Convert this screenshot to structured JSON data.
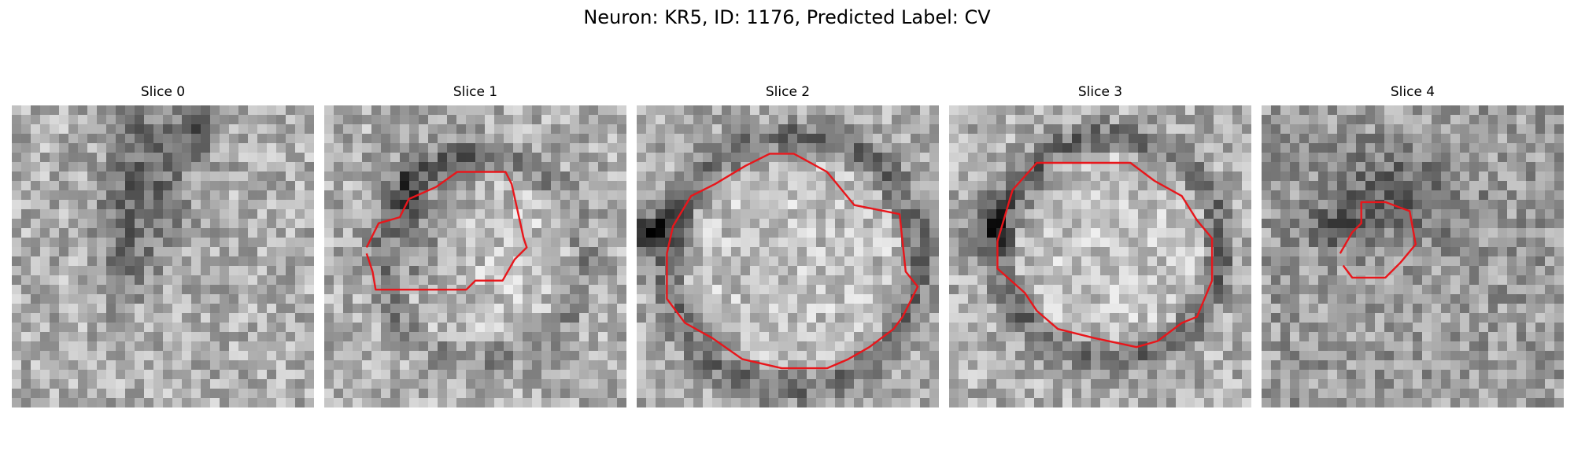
{
  "figure": {
    "title": "Neuron: KR5, ID: 1176, Predicted Label: CV"
  },
  "panels": [
    {
      "title": "Slice 0",
      "has_contour": false
    },
    {
      "title": "Slice 1",
      "has_contour": true
    },
    {
      "title": "Slice 2",
      "has_contour": true
    },
    {
      "title": "Slice 3",
      "has_contour": true
    },
    {
      "title": "Slice 4",
      "has_contour": true
    }
  ],
  "contour_color": "#e8161b"
}
